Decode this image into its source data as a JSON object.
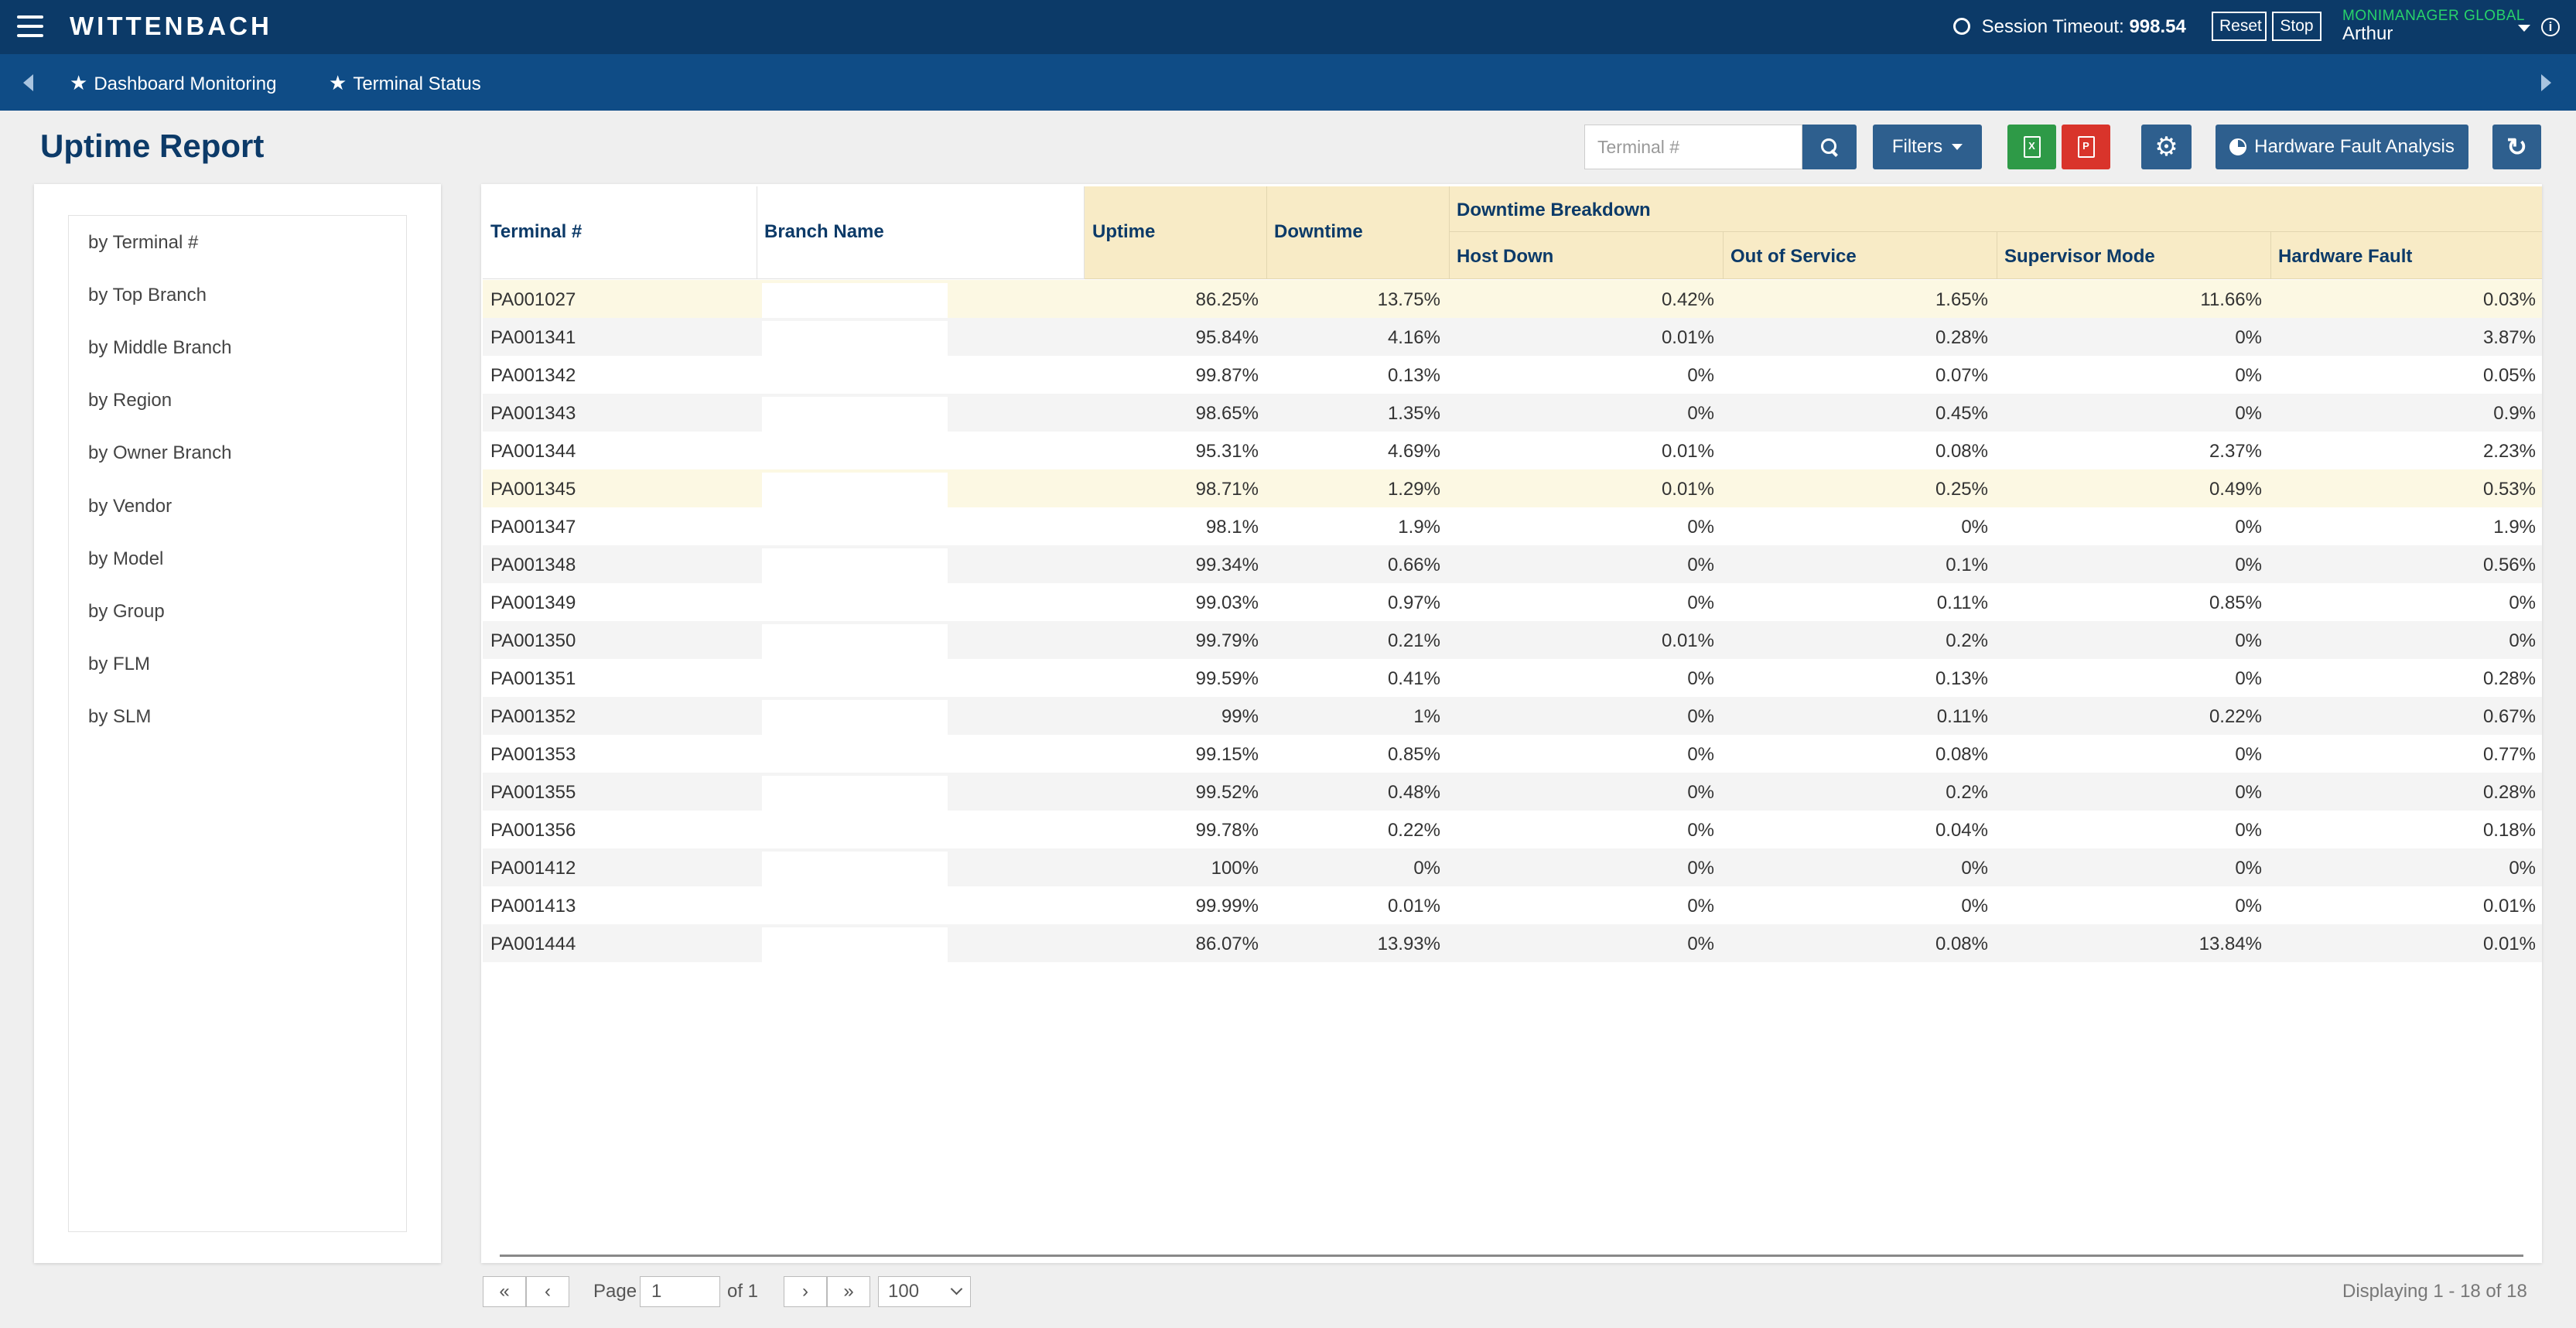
{
  "app": {
    "brand": "WITTENBACH"
  },
  "header": {
    "session_label": "Session Timeout:",
    "session_value": "998.54",
    "reset_label": "Reset",
    "stop_label": "Stop",
    "user_org": "MONIMANAGER GLOBAL",
    "user_name": "Arthur"
  },
  "nav": {
    "tabs": [
      {
        "label": "Dashboard Monitoring"
      },
      {
        "label": "Terminal Status"
      }
    ]
  },
  "page": {
    "title": "Uptime Report"
  },
  "toolbar": {
    "search_placeholder": "Terminal #",
    "filters_label": "Filters",
    "hfa_label": "Hardware Fault Analysis"
  },
  "sidebar": {
    "items": [
      {
        "label": "by Terminal #"
      },
      {
        "label": "by Top Branch"
      },
      {
        "label": "by Middle Branch"
      },
      {
        "label": "by Region"
      },
      {
        "label": "by Owner Branch"
      },
      {
        "label": "by Vendor"
      },
      {
        "label": "by Model"
      },
      {
        "label": "by Group"
      },
      {
        "label": "by FLM"
      },
      {
        "label": "by SLM"
      }
    ]
  },
  "table": {
    "headers": {
      "terminal": "Terminal #",
      "branch": "Branch Name",
      "uptime": "Uptime",
      "downtime": "Downtime",
      "breakdown": "Downtime Breakdown",
      "host_down": "Host Down",
      "out_of_service": "Out of Service",
      "supervisor": "Supervisor Mode",
      "hardware": "Hardware Fault"
    },
    "rows": [
      {
        "terminal": "PA001027",
        "uptime": "86.25%",
        "downtime": "13.75%",
        "host_down": "0.42%",
        "oos": "1.65%",
        "supervisor": "11.66%",
        "hardware": "0.03%",
        "highlight": true
      },
      {
        "terminal": "PA001341",
        "uptime": "95.84%",
        "downtime": "4.16%",
        "host_down": "0.01%",
        "oos": "0.28%",
        "supervisor": "0%",
        "hardware": "3.87%"
      },
      {
        "terminal": "PA001342",
        "uptime": "99.87%",
        "downtime": "0.13%",
        "host_down": "0%",
        "oos": "0.07%",
        "supervisor": "0%",
        "hardware": "0.05%"
      },
      {
        "terminal": "PA001343",
        "uptime": "98.65%",
        "downtime": "1.35%",
        "host_down": "0%",
        "oos": "0.45%",
        "supervisor": "0%",
        "hardware": "0.9%"
      },
      {
        "terminal": "PA001344",
        "uptime": "95.31%",
        "downtime": "4.69%",
        "host_down": "0.01%",
        "oos": "0.08%",
        "supervisor": "2.37%",
        "hardware": "2.23%"
      },
      {
        "terminal": "PA001345",
        "uptime": "98.71%",
        "downtime": "1.29%",
        "host_down": "0.01%",
        "oos": "0.25%",
        "supervisor": "0.49%",
        "hardware": "0.53%",
        "highlight": true
      },
      {
        "terminal": "PA001347",
        "uptime": "98.1%",
        "downtime": "1.9%",
        "host_down": "0%",
        "oos": "0%",
        "supervisor": "0%",
        "hardware": "1.9%"
      },
      {
        "terminal": "PA001348",
        "uptime": "99.34%",
        "downtime": "0.66%",
        "host_down": "0%",
        "oos": "0.1%",
        "supervisor": "0%",
        "hardware": "0.56%"
      },
      {
        "terminal": "PA001349",
        "uptime": "99.03%",
        "downtime": "0.97%",
        "host_down": "0%",
        "oos": "0.11%",
        "supervisor": "0.85%",
        "hardware": "0%"
      },
      {
        "terminal": "PA001350",
        "uptime": "99.79%",
        "downtime": "0.21%",
        "host_down": "0.01%",
        "oos": "0.2%",
        "supervisor": "0%",
        "hardware": "0%"
      },
      {
        "terminal": "PA001351",
        "uptime": "99.59%",
        "downtime": "0.41%",
        "host_down": "0%",
        "oos": "0.13%",
        "supervisor": "0%",
        "hardware": "0.28%"
      },
      {
        "terminal": "PA001352",
        "uptime": "99%",
        "downtime": "1%",
        "host_down": "0%",
        "oos": "0.11%",
        "supervisor": "0.22%",
        "hardware": "0.67%"
      },
      {
        "terminal": "PA001353",
        "uptime": "99.15%",
        "downtime": "0.85%",
        "host_down": "0%",
        "oos": "0.08%",
        "supervisor": "0%",
        "hardware": "0.77%"
      },
      {
        "terminal": "PA001355",
        "uptime": "99.52%",
        "downtime": "0.48%",
        "host_down": "0%",
        "oos": "0.2%",
        "supervisor": "0%",
        "hardware": "0.28%"
      },
      {
        "terminal": "PA001356",
        "uptime": "99.78%",
        "downtime": "0.22%",
        "host_down": "0%",
        "oos": "0.04%",
        "supervisor": "0%",
        "hardware": "0.18%"
      },
      {
        "terminal": "PA001412",
        "uptime": "100%",
        "downtime": "0%",
        "host_down": "0%",
        "oos": "0%",
        "supervisor": "0%",
        "hardware": "0%"
      },
      {
        "terminal": "PA001413",
        "uptime": "99.99%",
        "downtime": "0.01%",
        "host_down": "0%",
        "oos": "0%",
        "supervisor": "0%",
        "hardware": "0.01%"
      },
      {
        "terminal": "PA001444",
        "uptime": "86.07%",
        "downtime": "13.93%",
        "host_down": "0%",
        "oos": "0.08%",
        "supervisor": "13.84%",
        "hardware": "0.01%"
      }
    ]
  },
  "pager": {
    "page_label": "Page",
    "page_value": "1",
    "of_label": "of 1",
    "page_size": "100",
    "displaying": "Displaying 1 - 18 of 18"
  },
  "colors": {
    "header_dark": "#0c3a68",
    "header_nav": "#0f4c86",
    "button_blue": "#2e5f8e",
    "excel_green": "#2e9a47",
    "pdf_red": "#d9342b",
    "column_header_bg": "#f8ebc6",
    "highlight_row": "#fcf8e3",
    "alt_row": "#f4f4f4",
    "user_org_green": "#28d36a"
  }
}
